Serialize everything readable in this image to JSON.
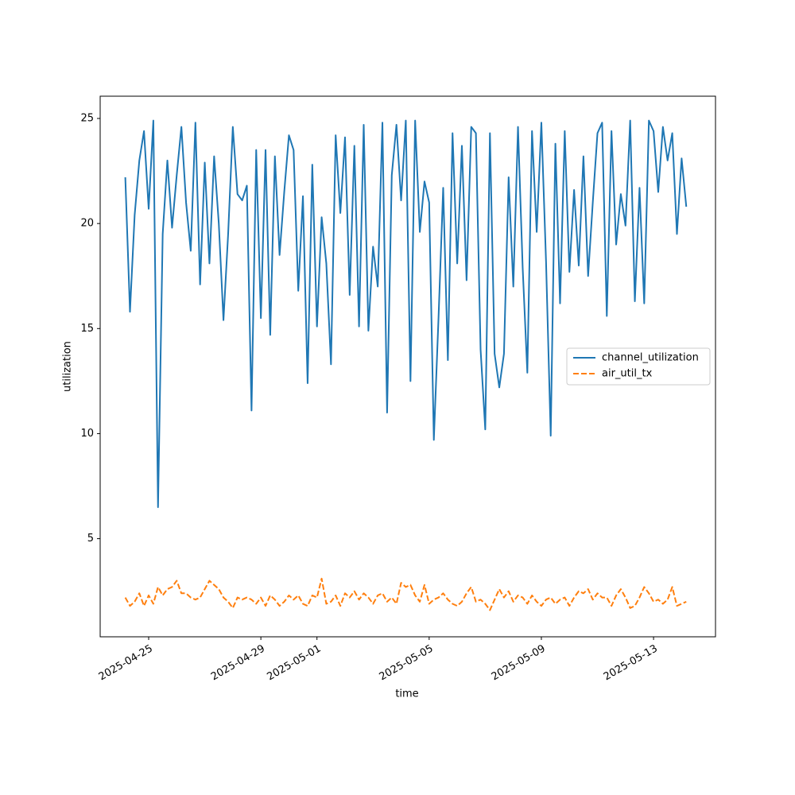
{
  "chart_data": {
    "type": "line",
    "xlabel": "time",
    "ylabel": "utilization",
    "x": [
      "2025-04-24 04:00",
      "2025-04-24 08:00",
      "2025-04-24 12:00",
      "2025-04-24 16:00",
      "2025-04-24 20:00",
      "2025-04-25 00:00",
      "2025-04-25 04:00",
      "2025-04-25 08:00",
      "2025-04-25 12:00",
      "2025-04-25 16:00",
      "2025-04-25 20:00",
      "2025-04-26 00:00",
      "2025-04-26 04:00",
      "2025-04-26 08:00",
      "2025-04-26 12:00",
      "2025-04-26 16:00",
      "2025-04-26 20:00",
      "2025-04-27 00:00",
      "2025-04-27 04:00",
      "2025-04-27 08:00",
      "2025-04-27 12:00",
      "2025-04-27 16:00",
      "2025-04-27 20:00",
      "2025-04-28 00:00",
      "2025-04-28 04:00",
      "2025-04-28 08:00",
      "2025-04-28 12:00",
      "2025-04-28 16:00",
      "2025-04-28 20:00",
      "2025-04-29 00:00",
      "2025-04-29 04:00",
      "2025-04-29 08:00",
      "2025-04-29 12:00",
      "2025-04-29 16:00",
      "2025-04-29 20:00",
      "2025-04-30 00:00",
      "2025-04-30 04:00",
      "2025-04-30 08:00",
      "2025-04-30 12:00",
      "2025-04-30 16:00",
      "2025-04-30 20:00",
      "2025-05-01 00:00",
      "2025-05-01 04:00",
      "2025-05-01 08:00",
      "2025-05-01 12:00",
      "2025-05-01 16:00",
      "2025-05-01 20:00",
      "2025-05-02 00:00",
      "2025-05-02 04:00",
      "2025-05-02 08:00",
      "2025-05-02 12:00",
      "2025-05-02 16:00",
      "2025-05-02 20:00",
      "2025-05-03 00:00",
      "2025-05-03 04:00",
      "2025-05-03 08:00",
      "2025-05-03 12:00",
      "2025-05-03 16:00",
      "2025-05-03 20:00",
      "2025-05-04 00:00",
      "2025-05-04 04:00",
      "2025-05-04 08:00",
      "2025-05-04 12:00",
      "2025-05-04 16:00",
      "2025-05-04 20:00",
      "2025-05-05 00:00",
      "2025-05-05 04:00",
      "2025-05-05 08:00",
      "2025-05-05 12:00",
      "2025-05-05 16:00",
      "2025-05-05 20:00",
      "2025-05-06 00:00",
      "2025-05-06 04:00",
      "2025-05-06 08:00",
      "2025-05-06 12:00",
      "2025-05-06 16:00",
      "2025-05-06 20:00",
      "2025-05-07 00:00",
      "2025-05-07 04:00",
      "2025-05-07 08:00",
      "2025-05-07 12:00",
      "2025-05-07 16:00",
      "2025-05-07 20:00",
      "2025-05-08 00:00",
      "2025-05-08 04:00",
      "2025-05-08 08:00",
      "2025-05-08 12:00",
      "2025-05-08 16:00",
      "2025-05-08 20:00",
      "2025-05-09 00:00",
      "2025-05-09 04:00",
      "2025-05-09 08:00",
      "2025-05-09 12:00",
      "2025-05-09 16:00",
      "2025-05-09 20:00",
      "2025-05-10 00:00",
      "2025-05-10 04:00",
      "2025-05-10 08:00",
      "2025-05-10 12:00",
      "2025-05-10 16:00",
      "2025-05-10 20:00",
      "2025-05-11 00:00",
      "2025-05-11 04:00",
      "2025-05-11 08:00",
      "2025-05-11 12:00",
      "2025-05-11 16:00",
      "2025-05-11 20:00",
      "2025-05-12 00:00",
      "2025-05-12 04:00",
      "2025-05-12 08:00",
      "2025-05-12 12:00",
      "2025-05-12 16:00",
      "2025-05-12 20:00",
      "2025-05-13 00:00",
      "2025-05-13 04:00",
      "2025-05-13 08:00",
      "2025-05-13 12:00",
      "2025-05-13 16:00",
      "2025-05-13 20:00",
      "2025-05-14 00:00",
      "2025-05-14 04:00"
    ],
    "series": [
      {
        "name": "channel_utilization",
        "color": "#1f77b4",
        "dash": "solid",
        "values": [
          22.2,
          15.8,
          20.4,
          23,
          24.4,
          20.7,
          24.9,
          6.5,
          19.5,
          23,
          19.8,
          22.3,
          24.6,
          21,
          18.7,
          24.8,
          17.1,
          22.9,
          18.1,
          23.2,
          20,
          15.4,
          19.5,
          24.6,
          21.4,
          21.1,
          21.8,
          11.1,
          23.5,
          15.5,
          23.5,
          14.7,
          23.2,
          18.5,
          21.5,
          24.2,
          23.5,
          16.8,
          21.3,
          12.4,
          22.8,
          15.1,
          20.3,
          18.1,
          13.3,
          24.2,
          20.5,
          24.1,
          16.6,
          23.7,
          15.1,
          24.7,
          14.9,
          18.9,
          17,
          24.8,
          11,
          22.3,
          24.7,
          21.1,
          24.9,
          12.5,
          24.9,
          19.6,
          22,
          21,
          9.7,
          15.5,
          21.7,
          13.5,
          24.3,
          18.1,
          23.7,
          17.3,
          24.6,
          24.3,
          14,
          10.2,
          24.3,
          13.8,
          12.2,
          13.8,
          22.2,
          17,
          24.6,
          17.9,
          12.9,
          24.4,
          19.6,
          24.8,
          18.2,
          9.9,
          23.8,
          16.2,
          24.4,
          17.7,
          21.6,
          18,
          23.2,
          17.5,
          21,
          24.3,
          24.8,
          15.6,
          24.4,
          19,
          21.4,
          19.9,
          24.9,
          16.3,
          21.7,
          16.2,
          24.9,
          24.4,
          21.5,
          24.6,
          23,
          24.3,
          19.5,
          23.1,
          20.8
        ]
      },
      {
        "name": "air_util_tx",
        "color": "#ff7f0e",
        "dash": "dashed",
        "values": [
          2.2,
          1.8,
          2,
          2.4,
          1.8,
          2.3,
          1.9,
          2.7,
          2.3,
          2.6,
          2.7,
          3,
          2.4,
          2.4,
          2.2,
          2.1,
          2.2,
          2.6,
          3,
          2.8,
          2.6,
          2.2,
          2,
          1.7,
          2.2,
          2.1,
          2.2,
          2.1,
          1.9,
          2.2,
          1.8,
          2.3,
          2.1,
          1.8,
          2,
          2.3,
          2.1,
          2.3,
          1.9,
          1.8,
          2.3,
          2.2,
          3.1,
          1.9,
          2,
          2.3,
          1.8,
          2.4,
          2.2,
          2.5,
          2.1,
          2.4,
          2.2,
          1.9,
          2.3,
          2.4,
          2,
          2.2,
          1.9,
          2.9,
          2.7,
          2.8,
          2.3,
          2,
          2.8,
          1.9,
          2.1,
          2.2,
          2.4,
          2.1,
          1.9,
          1.8,
          2,
          2.4,
          2.7,
          2,
          2.1,
          1.9,
          1.6,
          2.1,
          2.6,
          2.2,
          2.5,
          2,
          2.3,
          2.2,
          1.9,
          2.3,
          2,
          1.8,
          2.1,
          2.2,
          1.9,
          2.1,
          2.2,
          1.8,
          2.2,
          2.5,
          2.4,
          2.6,
          2.1,
          2.4,
          2.2,
          2.2,
          1.8,
          2.3,
          2.6,
          2.2,
          1.7,
          1.8,
          2.2,
          2.7,
          2.4,
          2,
          2.1,
          1.9,
          2.1,
          2.7,
          1.8,
          1.9,
          2.0
        ]
      }
    ],
    "xlim": [
      "2025-04-23 06:30",
      "2025-05-15 05:00"
    ],
    "xticks": [
      "2025-04-25",
      "2025-04-29",
      "2025-05-01",
      "2025-05-05",
      "2025-05-09",
      "2025-05-13"
    ],
    "ylim": [
      0.33,
      26.06
    ],
    "yticks": [
      5,
      10,
      15,
      20,
      25
    ],
    "grid": false,
    "legend": "center right"
  }
}
